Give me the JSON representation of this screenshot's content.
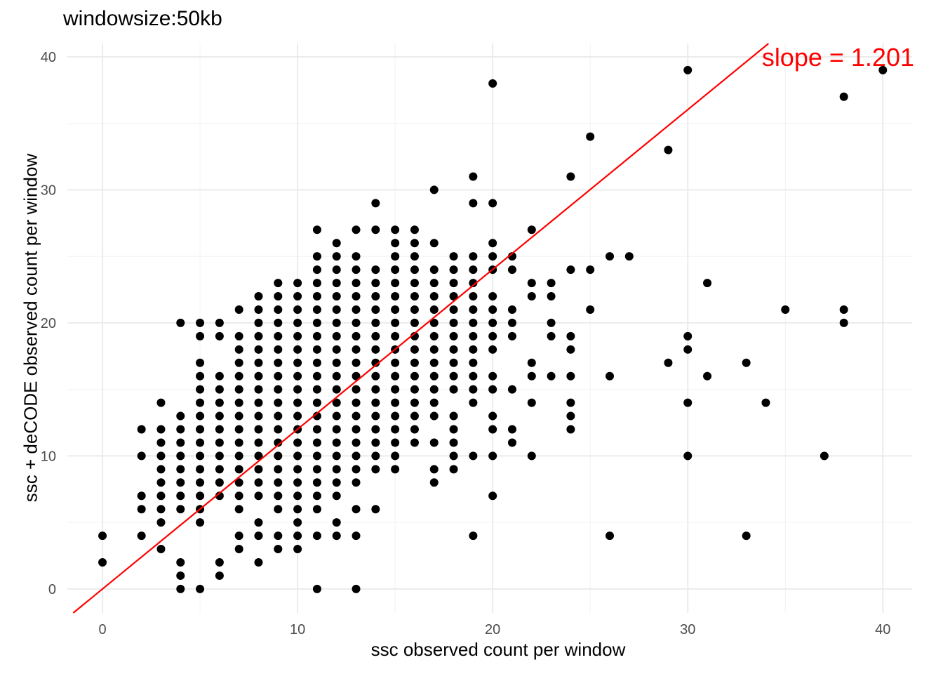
{
  "chart_data": {
    "type": "scatter",
    "title": "windowsize:50kb",
    "xlabel": "ssc observed count per window",
    "ylabel": "ssc + deCODE observed count per window",
    "xlim": [
      -1.8,
      41.5
    ],
    "ylim": [
      -1.8,
      41.0
    ],
    "xticks": [
      0,
      10,
      20,
      30,
      40
    ],
    "yticks": [
      0,
      10,
      20,
      30,
      40
    ],
    "grid": true,
    "point_color": "#000000",
    "fit_line": {
      "slope": 1.201,
      "intercept": 0,
      "color": "#ff0000"
    },
    "annotation": "slope = 1.201",
    "points": [
      [
        0,
        2
      ],
      [
        0,
        4
      ],
      [
        2,
        4
      ],
      [
        2,
        6
      ],
      [
        2,
        7
      ],
      [
        2,
        10
      ],
      [
        2,
        12
      ],
      [
        3,
        3
      ],
      [
        3,
        5
      ],
      [
        3,
        6
      ],
      [
        3,
        7
      ],
      [
        3,
        8
      ],
      [
        3,
        9
      ],
      [
        3,
        10
      ],
      [
        3,
        11
      ],
      [
        3,
        12
      ],
      [
        3,
        14
      ],
      [
        4,
        0
      ],
      [
        4,
        1
      ],
      [
        4,
        2
      ],
      [
        4,
        6
      ],
      [
        4,
        7
      ],
      [
        4,
        8
      ],
      [
        4,
        9
      ],
      [
        4,
        10
      ],
      [
        4,
        11
      ],
      [
        4,
        12
      ],
      [
        4,
        13
      ],
      [
        4,
        20
      ],
      [
        5,
        0
      ],
      [
        5,
        5
      ],
      [
        5,
        6
      ],
      [
        5,
        7
      ],
      [
        5,
        8
      ],
      [
        5,
        9
      ],
      [
        5,
        10
      ],
      [
        5,
        11
      ],
      [
        5,
        12
      ],
      [
        5,
        13
      ],
      [
        5,
        14
      ],
      [
        5,
        15
      ],
      [
        5,
        16
      ],
      [
        5,
        17
      ],
      [
        5,
        19
      ],
      [
        5,
        20
      ],
      [
        6,
        1
      ],
      [
        6,
        2
      ],
      [
        6,
        7
      ],
      [
        6,
        8
      ],
      [
        6,
        9
      ],
      [
        6,
        10
      ],
      [
        6,
        11
      ],
      [
        6,
        12
      ],
      [
        6,
        13
      ],
      [
        6,
        14
      ],
      [
        6,
        15
      ],
      [
        6,
        16
      ],
      [
        6,
        19
      ],
      [
        6,
        20
      ],
      [
        7,
        3
      ],
      [
        7,
        4
      ],
      [
        7,
        6
      ],
      [
        7,
        7
      ],
      [
        7,
        8
      ],
      [
        7,
        9
      ],
      [
        7,
        10
      ],
      [
        7,
        11
      ],
      [
        7,
        12
      ],
      [
        7,
        13
      ],
      [
        7,
        14
      ],
      [
        7,
        15
      ],
      [
        7,
        16
      ],
      [
        7,
        17
      ],
      [
        7,
        18
      ],
      [
        7,
        19
      ],
      [
        7,
        21
      ],
      [
        8,
        2
      ],
      [
        8,
        4
      ],
      [
        8,
        5
      ],
      [
        8,
        7
      ],
      [
        8,
        8
      ],
      [
        8,
        9
      ],
      [
        8,
        10
      ],
      [
        8,
        11
      ],
      [
        8,
        12
      ],
      [
        8,
        13
      ],
      [
        8,
        14
      ],
      [
        8,
        15
      ],
      [
        8,
        16
      ],
      [
        8,
        17
      ],
      [
        8,
        18
      ],
      [
        8,
        19
      ],
      [
        8,
        20
      ],
      [
        8,
        21
      ],
      [
        8,
        22
      ],
      [
        9,
        3
      ],
      [
        9,
        4
      ],
      [
        9,
        6
      ],
      [
        9,
        7
      ],
      [
        9,
        8
      ],
      [
        9,
        9
      ],
      [
        9,
        10
      ],
      [
        9,
        11
      ],
      [
        9,
        12
      ],
      [
        9,
        13
      ],
      [
        9,
        14
      ],
      [
        9,
        15
      ],
      [
        9,
        16
      ],
      [
        9,
        17
      ],
      [
        9,
        18
      ],
      [
        9,
        19
      ],
      [
        9,
        20
      ],
      [
        9,
        21
      ],
      [
        9,
        22
      ],
      [
        9,
        23
      ],
      [
        10,
        3
      ],
      [
        10,
        4
      ],
      [
        10,
        5
      ],
      [
        10,
        6
      ],
      [
        10,
        7
      ],
      [
        10,
        8
      ],
      [
        10,
        9
      ],
      [
        10,
        10
      ],
      [
        10,
        11
      ],
      [
        10,
        12
      ],
      [
        10,
        13
      ],
      [
        10,
        14
      ],
      [
        10,
        15
      ],
      [
        10,
        16
      ],
      [
        10,
        17
      ],
      [
        10,
        18
      ],
      [
        10,
        19
      ],
      [
        10,
        20
      ],
      [
        10,
        21
      ],
      [
        10,
        22
      ],
      [
        10,
        23
      ],
      [
        11,
        0
      ],
      [
        11,
        4
      ],
      [
        11,
        6
      ],
      [
        11,
        7
      ],
      [
        11,
        8
      ],
      [
        11,
        9
      ],
      [
        11,
        10
      ],
      [
        11,
        11
      ],
      [
        11,
        12
      ],
      [
        11,
        13
      ],
      [
        11,
        14
      ],
      [
        11,
        15
      ],
      [
        11,
        16
      ],
      [
        11,
        17
      ],
      [
        11,
        18
      ],
      [
        11,
        19
      ],
      [
        11,
        20
      ],
      [
        11,
        21
      ],
      [
        11,
        22
      ],
      [
        11,
        23
      ],
      [
        11,
        24
      ],
      [
        11,
        25
      ],
      [
        11,
        27
      ],
      [
        12,
        4
      ],
      [
        12,
        5
      ],
      [
        12,
        7
      ],
      [
        12,
        8
      ],
      [
        12,
        9
      ],
      [
        12,
        10
      ],
      [
        12,
        11
      ],
      [
        12,
        12
      ],
      [
        12,
        13
      ],
      [
        12,
        14
      ],
      [
        12,
        15
      ],
      [
        12,
        16
      ],
      [
        12,
        17
      ],
      [
        12,
        18
      ],
      [
        12,
        19
      ],
      [
        12,
        20
      ],
      [
        12,
        21
      ],
      [
        12,
        22
      ],
      [
        12,
        23
      ],
      [
        12,
        24
      ],
      [
        12,
        25
      ],
      [
        12,
        26
      ],
      [
        13,
        0
      ],
      [
        13,
        4
      ],
      [
        13,
        6
      ],
      [
        13,
        8
      ],
      [
        13,
        9
      ],
      [
        13,
        10
      ],
      [
        13,
        11
      ],
      [
        13,
        12
      ],
      [
        13,
        13
      ],
      [
        13,
        14
      ],
      [
        13,
        15
      ],
      [
        13,
        16
      ],
      [
        13,
        17
      ],
      [
        13,
        18
      ],
      [
        13,
        19
      ],
      [
        13,
        20
      ],
      [
        13,
        21
      ],
      [
        13,
        22
      ],
      [
        13,
        23
      ],
      [
        13,
        24
      ],
      [
        13,
        25
      ],
      [
        13,
        27
      ],
      [
        14,
        6
      ],
      [
        14,
        9
      ],
      [
        14,
        10
      ],
      [
        14,
        11
      ],
      [
        14,
        12
      ],
      [
        14,
        13
      ],
      [
        14,
        14
      ],
      [
        14,
        15
      ],
      [
        14,
        16
      ],
      [
        14,
        17
      ],
      [
        14,
        18
      ],
      [
        14,
        19
      ],
      [
        14,
        20
      ],
      [
        14,
        21
      ],
      [
        14,
        22
      ],
      [
        14,
        23
      ],
      [
        14,
        24
      ],
      [
        14,
        27
      ],
      [
        14,
        29
      ],
      [
        15,
        9
      ],
      [
        15,
        10
      ],
      [
        15,
        11
      ],
      [
        15,
        12
      ],
      [
        15,
        13
      ],
      [
        15,
        14
      ],
      [
        15,
        15
      ],
      [
        15,
        16
      ],
      [
        15,
        17
      ],
      [
        15,
        18
      ],
      [
        15,
        19
      ],
      [
        15,
        20
      ],
      [
        15,
        21
      ],
      [
        15,
        22
      ],
      [
        15,
        23
      ],
      [
        15,
        24
      ],
      [
        15,
        25
      ],
      [
        15,
        26
      ],
      [
        15,
        27
      ],
      [
        16,
        11
      ],
      [
        16,
        12
      ],
      [
        16,
        13
      ],
      [
        16,
        14
      ],
      [
        16,
        15
      ],
      [
        16,
        16
      ],
      [
        16,
        17
      ],
      [
        16,
        18
      ],
      [
        16,
        19
      ],
      [
        16,
        20
      ],
      [
        16,
        21
      ],
      [
        16,
        22
      ],
      [
        16,
        23
      ],
      [
        16,
        24
      ],
      [
        16,
        25
      ],
      [
        16,
        26
      ],
      [
        16,
        27
      ],
      [
        17,
        8
      ],
      [
        17,
        9
      ],
      [
        17,
        11
      ],
      [
        17,
        13
      ],
      [
        17,
        14
      ],
      [
        17,
        15
      ],
      [
        17,
        16
      ],
      [
        17,
        17
      ],
      [
        17,
        18
      ],
      [
        17,
        19
      ],
      [
        17,
        20
      ],
      [
        17,
        21
      ],
      [
        17,
        22
      ],
      [
        17,
        23
      ],
      [
        17,
        24
      ],
      [
        17,
        26
      ],
      [
        17,
        30
      ],
      [
        18,
        9
      ],
      [
        18,
        10
      ],
      [
        18,
        11
      ],
      [
        18,
        12
      ],
      [
        18,
        13
      ],
      [
        18,
        15
      ],
      [
        18,
        16
      ],
      [
        18,
        17
      ],
      [
        18,
        18
      ],
      [
        18,
        19
      ],
      [
        18,
        20
      ],
      [
        18,
        21
      ],
      [
        18,
        22
      ],
      [
        18,
        23
      ],
      [
        18,
        24
      ],
      [
        18,
        25
      ],
      [
        19,
        4
      ],
      [
        19,
        10
      ],
      [
        19,
        14
      ],
      [
        19,
        15
      ],
      [
        19,
        16
      ],
      [
        19,
        17
      ],
      [
        19,
        18
      ],
      [
        19,
        19
      ],
      [
        19,
        20
      ],
      [
        19,
        21
      ],
      [
        19,
        22
      ],
      [
        19,
        23
      ],
      [
        19,
        24
      ],
      [
        19,
        25
      ],
      [
        19,
        29
      ],
      [
        19,
        31
      ],
      [
        20,
        7
      ],
      [
        20,
        10
      ],
      [
        20,
        12
      ],
      [
        20,
        13
      ],
      [
        20,
        15
      ],
      [
        20,
        16
      ],
      [
        20,
        18
      ],
      [
        20,
        19
      ],
      [
        20,
        20
      ],
      [
        20,
        21
      ],
      [
        20,
        22
      ],
      [
        20,
        24
      ],
      [
        20,
        25
      ],
      [
        20,
        26
      ],
      [
        20,
        29
      ],
      [
        20,
        38
      ],
      [
        21,
        11
      ],
      [
        21,
        12
      ],
      [
        21,
        15
      ],
      [
        21,
        19
      ],
      [
        21,
        20
      ],
      [
        21,
        21
      ],
      [
        21,
        24
      ],
      [
        21,
        25
      ],
      [
        22,
        10
      ],
      [
        22,
        14
      ],
      [
        22,
        16
      ],
      [
        22,
        17
      ],
      [
        22,
        22
      ],
      [
        22,
        23
      ],
      [
        22,
        27
      ],
      [
        23,
        16
      ],
      [
        23,
        19
      ],
      [
        23,
        20
      ],
      [
        23,
        22
      ],
      [
        23,
        23
      ],
      [
        24,
        12
      ],
      [
        24,
        13
      ],
      [
        24,
        14
      ],
      [
        24,
        16
      ],
      [
        24,
        18
      ],
      [
        24,
        19
      ],
      [
        24,
        24
      ],
      [
        24,
        31
      ],
      [
        25,
        21
      ],
      [
        25,
        24
      ],
      [
        25,
        34
      ],
      [
        26,
        4
      ],
      [
        26,
        16
      ],
      [
        26,
        25
      ],
      [
        27,
        25
      ],
      [
        29,
        17
      ],
      [
        29,
        33
      ],
      [
        30,
        10
      ],
      [
        30,
        14
      ],
      [
        30,
        18
      ],
      [
        30,
        19
      ],
      [
        30,
        39
      ],
      [
        31,
        16
      ],
      [
        31,
        23
      ],
      [
        33,
        4
      ],
      [
        33,
        17
      ],
      [
        34,
        14
      ],
      [
        35,
        21
      ],
      [
        37,
        10
      ],
      [
        38,
        20
      ],
      [
        38,
        21
      ],
      [
        38,
        37
      ],
      [
        40,
        39
      ]
    ]
  }
}
